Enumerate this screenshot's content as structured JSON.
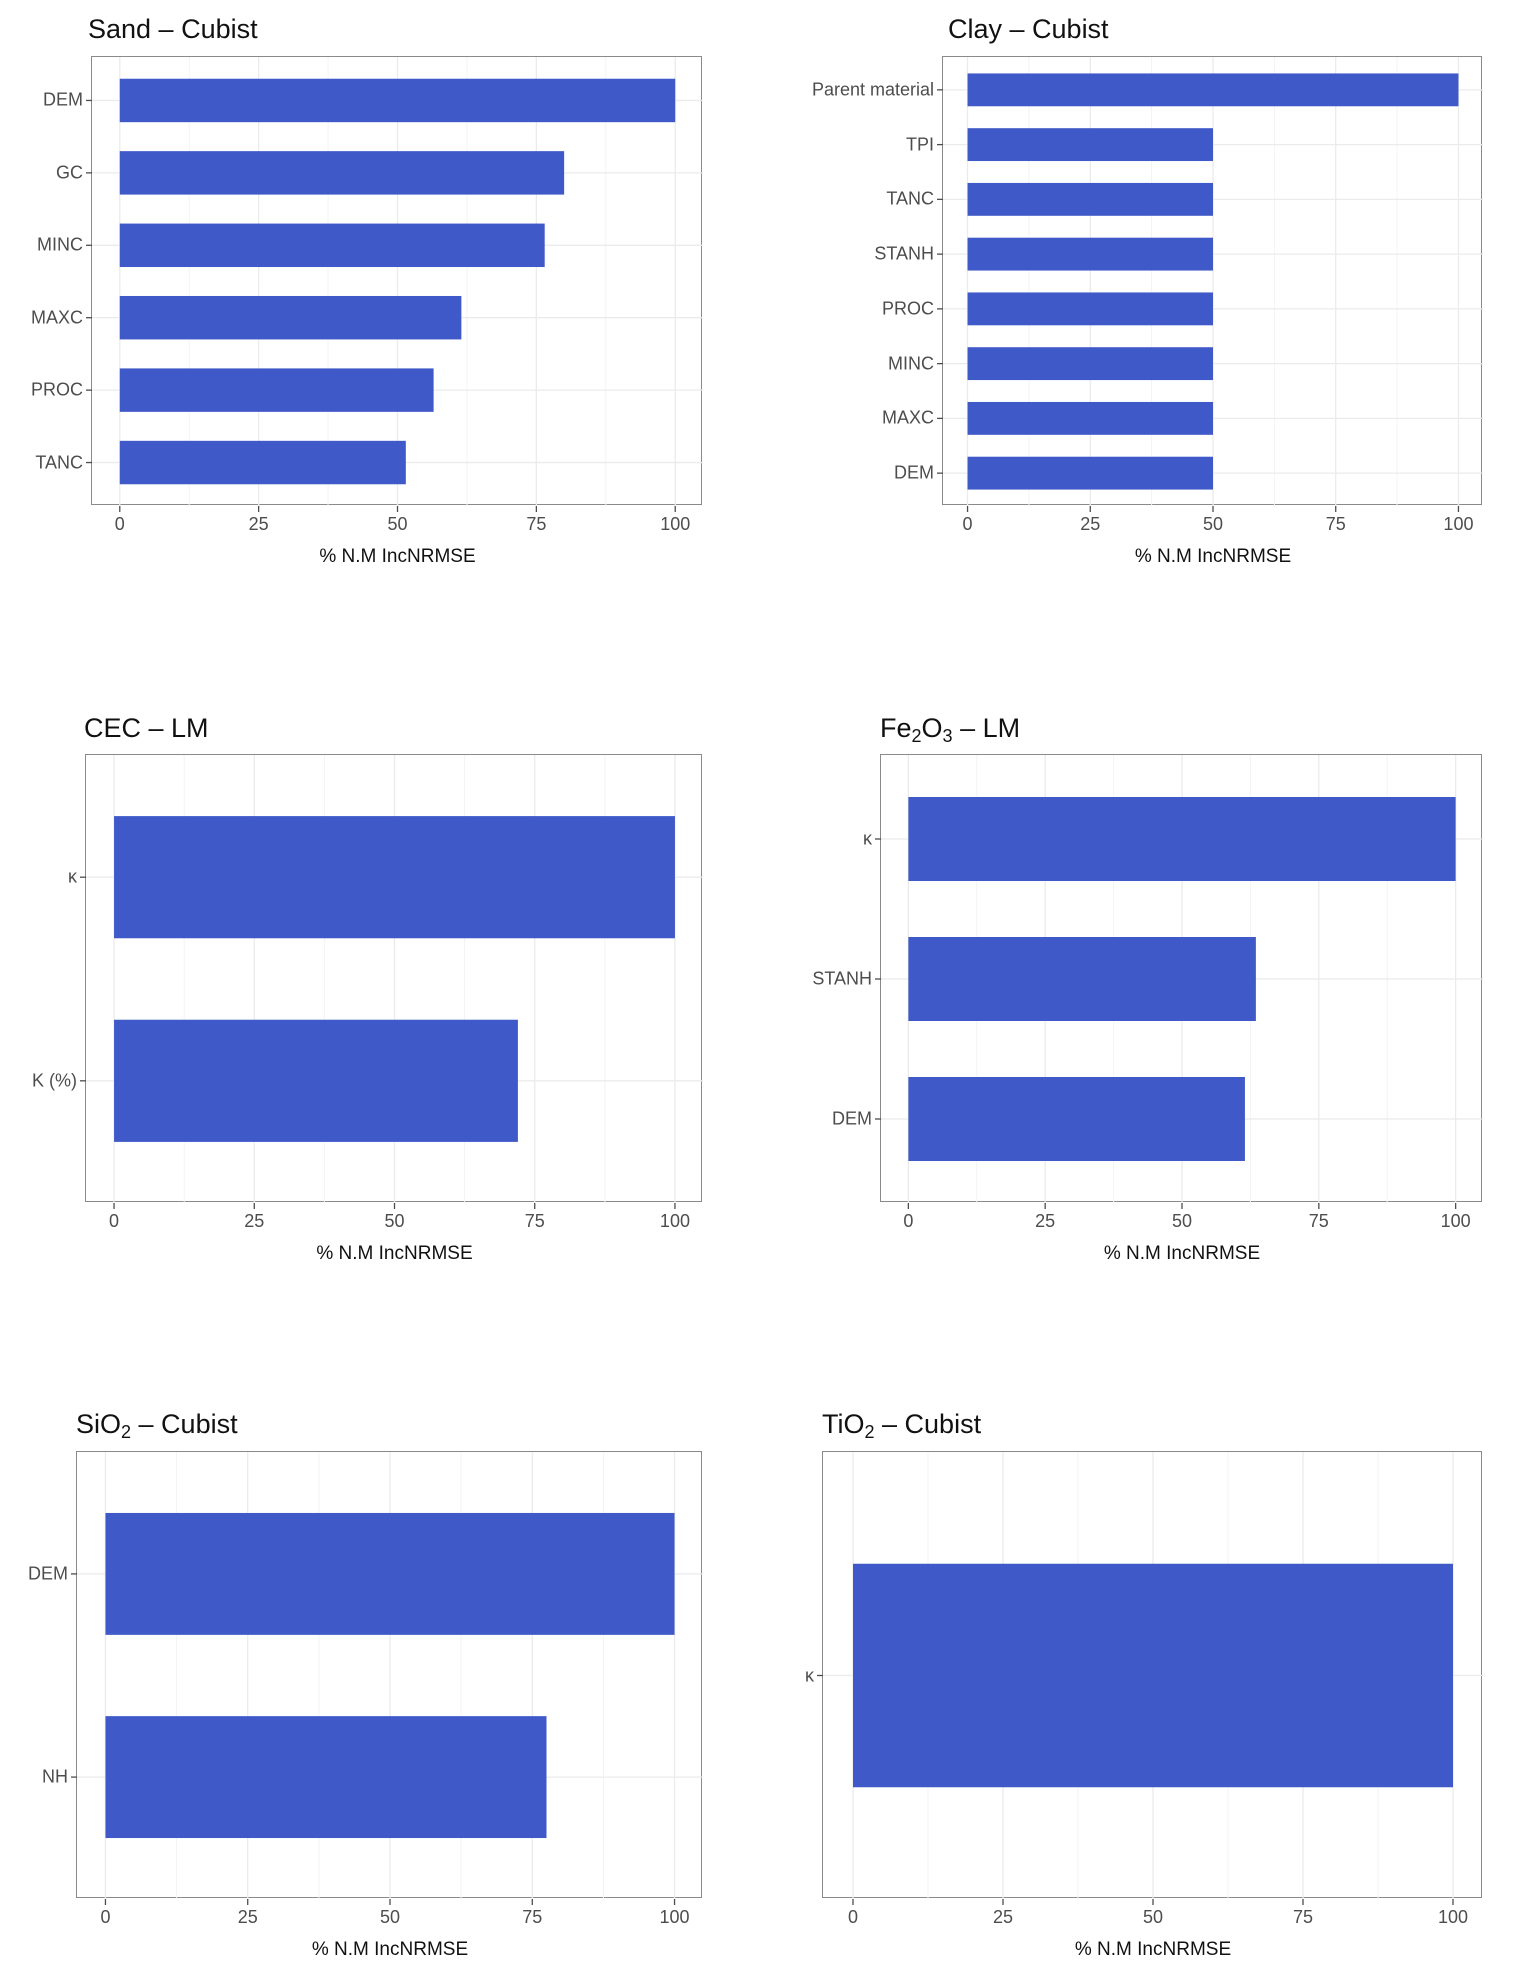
{
  "colors": {
    "bar": "#4059c8",
    "grid": "#ebebeb",
    "tick": "#4d4d4d"
  },
  "chart_data": [
    {
      "type": "bar",
      "orientation": "horizontal",
      "title_parts": [
        {
          "text": "Sand – Cubist"
        }
      ],
      "title": "Sand – Cubist",
      "xlabel": "% N.M IncNRMSE",
      "xlim": [
        0,
        100
      ],
      "xticks": [
        "0",
        "25",
        "50",
        "75",
        "100"
      ],
      "categories": [
        "DEM",
        "GC",
        "MINC",
        "MAXC",
        "PROC",
        "TANC"
      ],
      "values": [
        100,
        80,
        76.5,
        61.5,
        56.5,
        51.5
      ]
    },
    {
      "type": "bar",
      "orientation": "horizontal",
      "title_parts": [
        {
          "text": "Clay – Cubist"
        }
      ],
      "title": "Clay – Cubist",
      "xlabel": "% N.M IncNRMSE",
      "xlim": [
        0,
        100
      ],
      "xticks": [
        "0",
        "25",
        "50",
        "75",
        "100"
      ],
      "categories": [
        "Parent material",
        "TPI",
        "TANC",
        "STANH",
        "PROC",
        "MINC",
        "MAXC",
        "DEM"
      ],
      "values": [
        100,
        50,
        50,
        50,
        50,
        50,
        50,
        50
      ]
    },
    {
      "type": "bar",
      "orientation": "horizontal",
      "title_parts": [
        {
          "text": "CEC – LM"
        }
      ],
      "title": "CEC – LM",
      "xlabel": "% N.M IncNRMSE",
      "xlim": [
        0,
        100
      ],
      "xticks": [
        "0",
        "25",
        "50",
        "75",
        "100"
      ],
      "categories": [
        "κ",
        "K (%)"
      ],
      "values": [
        100,
        72
      ]
    },
    {
      "type": "bar",
      "orientation": "horizontal",
      "title_parts": [
        {
          "text": "Fe"
        },
        {
          "text": "2",
          "sub": true
        },
        {
          "text": "O"
        },
        {
          "text": "3",
          "sub": true
        },
        {
          "text": " – LM"
        }
      ],
      "title": "Fe2O3 – LM",
      "xlabel": "% N.M IncNRMSE",
      "xlim": [
        0,
        100
      ],
      "xticks": [
        "0",
        "25",
        "50",
        "75",
        "100"
      ],
      "categories": [
        "κ",
        "STANH",
        "DEM"
      ],
      "values": [
        100,
        63.5,
        61.5
      ]
    },
    {
      "type": "bar",
      "orientation": "horizontal",
      "title_parts": [
        {
          "text": "SiO"
        },
        {
          "text": "2",
          "sub": true
        },
        {
          "text": " – Cubist"
        }
      ],
      "title": "SiO2 – Cubist",
      "xlabel": "% N.M IncNRMSE",
      "xlim": [
        0,
        100
      ],
      "xticks": [
        "0",
        "25",
        "50",
        "75",
        "100"
      ],
      "categories": [
        "DEM",
        "NH"
      ],
      "values": [
        100,
        77.5
      ]
    },
    {
      "type": "bar",
      "orientation": "horizontal",
      "title_parts": [
        {
          "text": "TiO"
        },
        {
          "text": "2",
          "sub": true
        },
        {
          "text": " – Cubist"
        }
      ],
      "title": "TiO2 – Cubist",
      "xlabel": "% N.M IncNRMSE",
      "xlim": [
        0,
        100
      ],
      "xticks": [
        "0",
        "25",
        "50",
        "75",
        "100"
      ],
      "categories": [
        "κ"
      ],
      "values": [
        100
      ]
    }
  ]
}
